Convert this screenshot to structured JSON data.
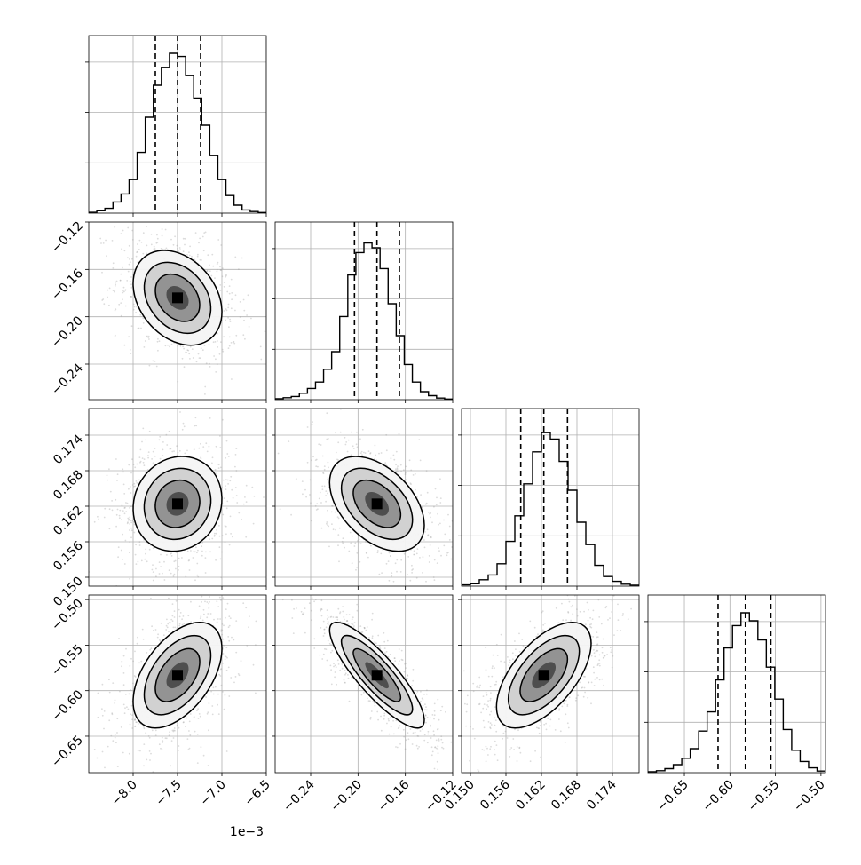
{
  "chart_data": {
    "type": "corner",
    "parameters": [
      {
        "ticks": [
          -8.0,
          -7.5,
          -7.0,
          -6.5
        ],
        "tick_labels": [
          "−8.0",
          "−7.5",
          "−7.0",
          "−6.5"
        ],
        "range": [
          -8.5,
          -6.5
        ],
        "offset_label": "1e−3",
        "quantiles": [
          -7.75,
          -7.5,
          -7.24
        ],
        "mean": -7.5,
        "sd": 0.25
      },
      {
        "ticks": [
          -0.24,
          -0.2,
          -0.16,
          -0.12
        ],
        "tick_labels": [
          "−0.24",
          "−0.20",
          "−0.16",
          "−0.12"
        ],
        "range": [
          -0.27,
          -0.12
        ],
        "quantiles": [
          -0.203,
          -0.184,
          -0.165
        ],
        "mean": -0.184,
        "sd": 0.02
      },
      {
        "ticks": [
          0.15,
          0.156,
          0.162,
          0.168,
          0.174
        ],
        "tick_labels": [
          "0.150",
          "0.156",
          "0.162",
          "0.168",
          "0.174"
        ],
        "range": [
          0.1485,
          0.1785
        ],
        "quantiles": [
          0.1585,
          0.1624,
          0.1664
        ],
        "mean": 0.1624,
        "sd": 0.004
      },
      {
        "ticks": [
          -0.65,
          -0.6,
          -0.55,
          -0.5
        ],
        "tick_labels": [
          "−0.65",
          "−0.60",
          "−0.55",
          "−0.50"
        ],
        "range": [
          -0.69,
          -0.495
        ],
        "quantiles": [
          -0.613,
          -0.583,
          -0.555
        ],
        "mean": -0.583,
        "sd": 0.029
      }
    ],
    "histograms": [
      {
        "counts": [
          0.005,
          0.015,
          0.03,
          0.07,
          0.12,
          0.21,
          0.38,
          0.6,
          0.8,
          0.91,
          1.0,
          0.98,
          0.86,
          0.72,
          0.55,
          0.36,
          0.21,
          0.11,
          0.05,
          0.02,
          0.01,
          0.004
        ]
      },
      {
        "counts": [
          0.006,
          0.012,
          0.02,
          0.04,
          0.07,
          0.11,
          0.19,
          0.3,
          0.52,
          0.78,
          0.92,
          0.98,
          0.95,
          0.82,
          0.6,
          0.4,
          0.22,
          0.11,
          0.05,
          0.025,
          0.01,
          0.004
        ]
      },
      {
        "counts": [
          0.008,
          0.015,
          0.04,
          0.07,
          0.14,
          0.28,
          0.44,
          0.64,
          0.84,
          0.96,
          0.92,
          0.78,
          0.6,
          0.4,
          0.26,
          0.13,
          0.06,
          0.03,
          0.012,
          0.006
        ]
      },
      {
        "counts": [
          0.006,
          0.012,
          0.025,
          0.05,
          0.09,
          0.15,
          0.26,
          0.38,
          0.58,
          0.78,
          0.92,
          1.0,
          0.95,
          0.83,
          0.66,
          0.46,
          0.27,
          0.14,
          0.07,
          0.03,
          0.01
        ]
      }
    ],
    "correlations": {
      "1-0": -0.3,
      "2-0": 0.1,
      "2-1": -0.45,
      "3-0": 0.5,
      "3-1": -0.85,
      "3-2": 0.6
    },
    "contour_levels": [
      "0.5 sigma",
      "1 sigma",
      "1.5 sigma",
      "2 sigma"
    ],
    "colors": {
      "line": "#000000",
      "grid": "#b0b0b0",
      "scatter": "#9a9a9a"
    }
  }
}
